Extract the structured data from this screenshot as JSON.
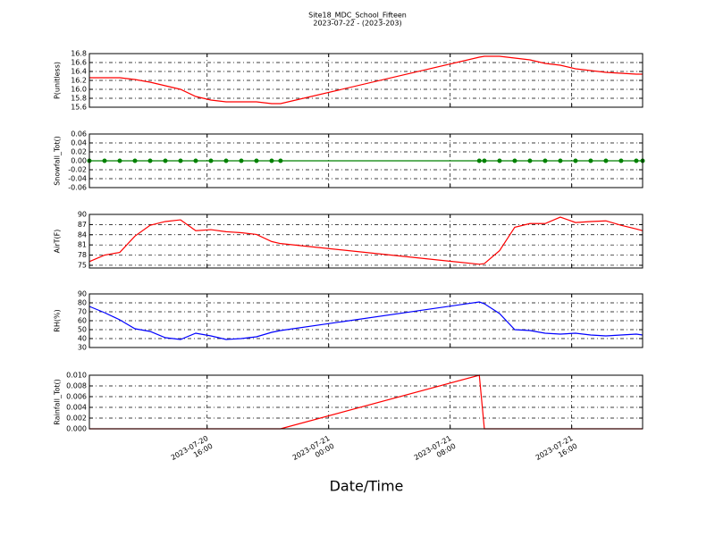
{
  "title": "Site18_MDC_School_Fifteen",
  "subtitle": "2023-07-22 - (2023-203)",
  "xlabel": "Date/Time",
  "chart_data": [
    {
      "type": "line",
      "ylabel": "P(unitless)",
      "color": "#ff0000",
      "grid": true,
      "xlim": [
        "2023-07-20 08:15",
        "2023-07-21 20:40"
      ],
      "xticks": [
        "2023-07-20 16:00",
        "2023-07-21 00:00",
        "2023-07-21 08:00",
        "2023-07-21 16:00"
      ],
      "ylim": [
        15.6,
        16.8
      ],
      "yticks": [
        15.6,
        15.8,
        {
          "value": 16,
          "label": "16.0"
        },
        16.2,
        16.4,
        16.6,
        16.8
      ],
      "x": [
        "2023-07-20 08:15",
        "2023-07-20 09:15",
        "2023-07-20 10:15",
        "2023-07-20 11:15",
        "2023-07-20 12:15",
        "2023-07-20 13:15",
        "2023-07-20 14:15",
        "2023-07-20 15:15",
        "2023-07-20 16:15",
        "2023-07-20 17:15",
        "2023-07-20 18:15",
        "2023-07-20 19:15",
        "2023-07-20 20:15",
        "2023-07-20 20:50",
        "2023-07-21 09:55",
        "2023-07-21 10:15",
        "2023-07-21 11:15",
        "2023-07-21 12:15",
        "2023-07-21 13:15",
        "2023-07-21 14:15",
        "2023-07-21 15:15",
        "2023-07-21 16:15",
        "2023-07-21 17:15",
        "2023-07-21 18:15",
        "2023-07-21 19:15",
        "2023-07-21 20:15",
        "2023-07-21 20:40"
      ],
      "values": [
        16.26,
        16.26,
        16.26,
        16.22,
        16.16,
        16.08,
        16.0,
        15.84,
        15.76,
        15.72,
        15.72,
        15.72,
        15.68,
        15.68,
        16.72,
        16.74,
        16.74,
        16.7,
        16.66,
        16.58,
        16.54,
        16.46,
        16.42,
        16.38,
        16.36,
        16.34,
        16.34
      ]
    },
    {
      "type": "line",
      "ylabel": "Snowfall_Tot()",
      "color": "#008000",
      "grid": true,
      "marker": true,
      "xlim": [
        "2023-07-20 08:15",
        "2023-07-21 20:40"
      ],
      "xticks": [
        "2023-07-20 16:00",
        "2023-07-21 00:00",
        "2023-07-21 08:00",
        "2023-07-21 16:00"
      ],
      "ylim": [
        -0.06,
        0.06
      ],
      "yticks": [
        {
          "value": -0.06,
          "label": "-0.06"
        },
        {
          "value": -0.04,
          "label": "-0.04"
        },
        {
          "value": -0.02,
          "label": "-0.02"
        },
        {
          "value": 0,
          "label": "0.00"
        },
        0.02,
        0.04,
        0.06
      ],
      "x": [
        "2023-07-20 08:15",
        "2023-07-20 09:15",
        "2023-07-20 10:15",
        "2023-07-20 11:15",
        "2023-07-20 12:15",
        "2023-07-20 13:15",
        "2023-07-20 14:15",
        "2023-07-20 15:15",
        "2023-07-20 16:15",
        "2023-07-20 17:15",
        "2023-07-20 18:15",
        "2023-07-20 19:15",
        "2023-07-20 20:15",
        "2023-07-20 20:50",
        "2023-07-21 09:55",
        "2023-07-21 10:15",
        "2023-07-21 11:15",
        "2023-07-21 12:15",
        "2023-07-21 13:15",
        "2023-07-21 14:15",
        "2023-07-21 15:15",
        "2023-07-21 16:15",
        "2023-07-21 17:15",
        "2023-07-21 18:15",
        "2023-07-21 19:15",
        "2023-07-21 20:15",
        "2023-07-21 20:40"
      ],
      "values": [
        0,
        0,
        0,
        0,
        0,
        0,
        0,
        0,
        0,
        0,
        0,
        0,
        0,
        0,
        0,
        0,
        0,
        0,
        0,
        0,
        0,
        0,
        0,
        0,
        0,
        0,
        0
      ]
    },
    {
      "type": "line",
      "ylabel": "AirT(F)",
      "color": "#ff0000",
      "grid": true,
      "xlim": [
        "2023-07-20 08:15",
        "2023-07-21 20:40"
      ],
      "xticks": [
        "2023-07-20 16:00",
        "2023-07-21 00:00",
        "2023-07-21 08:00",
        "2023-07-21 16:00"
      ],
      "ylim": [
        74.2,
        90
      ],
      "yticks": [
        75,
        78,
        81,
        84,
        87,
        90
      ],
      "x": [
        "2023-07-20 08:15",
        "2023-07-20 09:15",
        "2023-07-20 10:15",
        "2023-07-20 11:15",
        "2023-07-20 12:15",
        "2023-07-20 13:15",
        "2023-07-20 14:15",
        "2023-07-20 15:15",
        "2023-07-20 16:15",
        "2023-07-20 17:15",
        "2023-07-20 18:15",
        "2023-07-20 19:15",
        "2023-07-20 20:15",
        "2023-07-20 20:50",
        "2023-07-21 09:55",
        "2023-07-21 10:15",
        "2023-07-21 11:15",
        "2023-07-21 12:15",
        "2023-07-21 13:15",
        "2023-07-21 14:15",
        "2023-07-21 15:15",
        "2023-07-21 16:15",
        "2023-07-21 17:15",
        "2023-07-21 18:15",
        "2023-07-21 19:15",
        "2023-07-21 20:15",
        "2023-07-21 20:40"
      ],
      "values": [
        76.1,
        78,
        78.8,
        83.6,
        86.8,
        87.9,
        88.4,
        85.2,
        85.5,
        84.9,
        84.6,
        84.1,
        82,
        81.4,
        75.3,
        75.5,
        79.3,
        86.2,
        87.3,
        87.3,
        89.2,
        87.6,
        87.9,
        88.1,
        86.8,
        85.7,
        85.2
      ]
    },
    {
      "type": "line",
      "ylabel": "RH(%)",
      "color": "#0000ff",
      "grid": true,
      "xlim": [
        "2023-07-20 08:15",
        "2023-07-21 20:40"
      ],
      "xticks": [
        "2023-07-20 16:00",
        "2023-07-21 00:00",
        "2023-07-21 08:00",
        "2023-07-21 16:00"
      ],
      "ylim": [
        30,
        90
      ],
      "yticks": [
        30,
        40,
        50,
        60,
        70,
        80,
        90
      ],
      "x": [
        "2023-07-20 08:15",
        "2023-07-20 09:15",
        "2023-07-20 10:15",
        "2023-07-20 11:15",
        "2023-07-20 12:15",
        "2023-07-20 13:15",
        "2023-07-20 14:15",
        "2023-07-20 15:15",
        "2023-07-20 16:15",
        "2023-07-20 17:15",
        "2023-07-20 18:15",
        "2023-07-20 19:15",
        "2023-07-20 20:15",
        "2023-07-20 20:50",
        "2023-07-21 09:55",
        "2023-07-21 10:15",
        "2023-07-21 11:15",
        "2023-07-21 12:15",
        "2023-07-21 13:15",
        "2023-07-21 14:15",
        "2023-07-21 15:15",
        "2023-07-21 16:15",
        "2023-07-21 17:15",
        "2023-07-21 18:15",
        "2023-07-21 19:15",
        "2023-07-21 20:15",
        "2023-07-21 20:40"
      ],
      "values": [
        76,
        69,
        61,
        51,
        48,
        41,
        39,
        46,
        43,
        39,
        40,
        42,
        47,
        49,
        81,
        79,
        68,
        50,
        49,
        46,
        45,
        46,
        44,
        43,
        44,
        45,
        44
      ]
    },
    {
      "type": "line",
      "ylabel": "Rainfall_Tot()",
      "color": "#ff0000",
      "grid": true,
      "xlim": [
        "2023-07-20 08:15",
        "2023-07-21 20:40"
      ],
      "xticks": [
        {
          "value": "2023-07-20 16:00",
          "label": "2023-07-20\n16:00"
        },
        {
          "value": "2023-07-21 00:00",
          "label": "2023-07-21\n00:00"
        },
        {
          "value": "2023-07-21 08:00",
          "label": "2023-07-21\n08:00"
        },
        {
          "value": "2023-07-21 16:00",
          "label": "2023-07-21\n16:00"
        }
      ],
      "ylim": [
        0,
        0.01
      ],
      "yticks": [
        {
          "value": 0,
          "label": "0.000"
        },
        {
          "value": 0.002,
          "label": "0.002"
        },
        {
          "value": 0.004,
          "label": "0.004"
        },
        {
          "value": 0.006,
          "label": "0.006"
        },
        {
          "value": 0.008,
          "label": "0.008"
        },
        {
          "value": 0.01,
          "label": "0.010"
        }
      ],
      "x": [
        "2023-07-20 08:15",
        "2023-07-20 09:15",
        "2023-07-20 10:15",
        "2023-07-20 11:15",
        "2023-07-20 12:15",
        "2023-07-20 13:15",
        "2023-07-20 14:15",
        "2023-07-20 15:15",
        "2023-07-20 16:15",
        "2023-07-20 17:15",
        "2023-07-20 18:15",
        "2023-07-20 19:15",
        "2023-07-20 20:15",
        "2023-07-20 20:50",
        "2023-07-21 09:55",
        "2023-07-21 10:15",
        "2023-07-21 11:15",
        "2023-07-21 12:15",
        "2023-07-21 13:15",
        "2023-07-21 14:15",
        "2023-07-21 15:15",
        "2023-07-21 16:15",
        "2023-07-21 17:15",
        "2023-07-21 18:15",
        "2023-07-21 19:15",
        "2023-07-21 20:15",
        "2023-07-21 20:40"
      ],
      "values": [
        0,
        0,
        0,
        0,
        0,
        0,
        0,
        0,
        0,
        0,
        0,
        0,
        0,
        0,
        0.01,
        0,
        0,
        0,
        0,
        0,
        0,
        0,
        0,
        0,
        0,
        0,
        0
      ]
    }
  ]
}
